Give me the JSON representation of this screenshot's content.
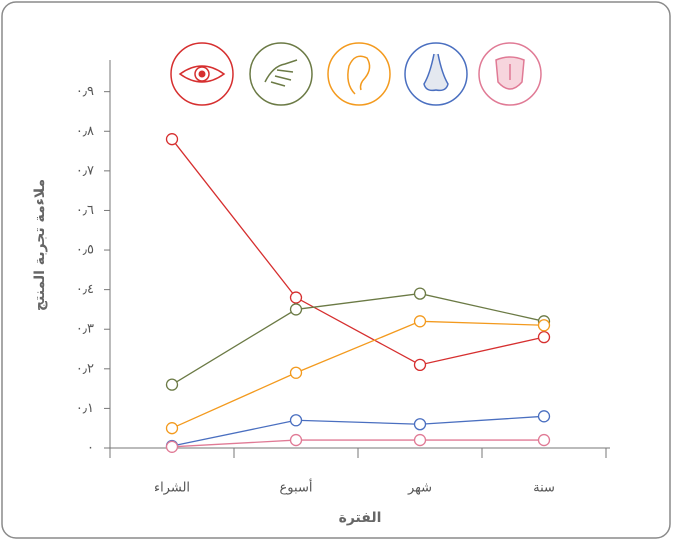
{
  "chart_data": {
    "type": "line",
    "y_label": "ملاءمة تجربة المنتج",
    "x_label": "الفترة",
    "categories": [
      "الشراء",
      "أسبوع",
      "شهر",
      "سنة"
    ],
    "series": [
      {
        "color": "#d62f2f",
        "values": [
          0.78,
          0.38,
          0.21,
          0.28
        ]
      },
      {
        "color": "#6b7a45",
        "values": [
          0.16,
          0.35,
          0.39,
          0.32
        ]
      },
      {
        "color": "#f39a1e",
        "values": [
          0.05,
          0.19,
          0.32,
          0.31
        ]
      },
      {
        "color": "#4a6fc0",
        "values": [
          0.005,
          0.07,
          0.06,
          0.08
        ]
      },
      {
        "color": "#e07a95",
        "values": [
          0.003,
          0.02,
          0.02,
          0.02
        ]
      }
    ],
    "ylim": [
      0,
      0.98
    ],
    "yticks": [
      {
        "value": 0,
        "label": "٠"
      },
      {
        "value": 0.1,
        "label": "٠٫١"
      },
      {
        "value": 0.2,
        "label": "٠٫٢"
      },
      {
        "value": 0.3,
        "label": "٠٫٣"
      },
      {
        "value": 0.4,
        "label": "٠٫٤"
      },
      {
        "value": 0.5,
        "label": "٠٫٥"
      },
      {
        "value": 0.6,
        "label": "٠٫٦"
      },
      {
        "value": 0.7,
        "label": "٠٫٧"
      },
      {
        "value": 0.8,
        "label": "٠٫٨"
      },
      {
        "value": 0.9,
        "label": "٠٫٩"
      }
    ],
    "grid": false
  }
}
